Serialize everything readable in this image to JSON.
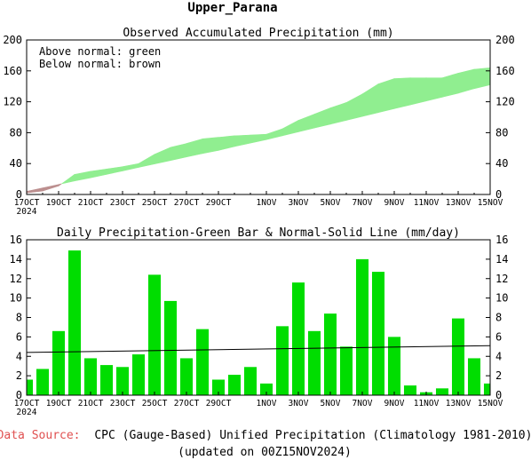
{
  "page_title": "Upper_Parana",
  "source": {
    "label": "Data Source:",
    "text": "CPC (Gauge-Based) Unified Precipitation (Climatology 1981-2010)",
    "updated": "(updated on 00Z15NOV2024)"
  },
  "colors": {
    "above_normal": "#90EE90",
    "below_normal": "#BC8F8F",
    "bar": "#00DD00",
    "normal_line": "#000000",
    "source_label": "#E05050"
  },
  "chart_data": [
    {
      "type": "area",
      "title": "Observed Accumulated Precipitation (mm)",
      "annotations": [
        "Above normal: green",
        "Below normal: brown"
      ],
      "ylim": [
        0,
        200
      ],
      "yticks": [
        0,
        40,
        80,
        120,
        160,
        200
      ],
      "xlim": [
        0,
        29
      ],
      "xtick_labels": [
        {
          "x": 0,
          "label": "17OCT",
          "sub": "2024"
        },
        {
          "x": 2,
          "label": "19OCT"
        },
        {
          "x": 4,
          "label": "21OCT"
        },
        {
          "x": 6,
          "label": "23OCT"
        },
        {
          "x": 8,
          "label": "25OCT"
        },
        {
          "x": 10,
          "label": "27OCT"
        },
        {
          "x": 12,
          "label": "29OCT"
        },
        {
          "x": 15,
          "label": "1NOV"
        },
        {
          "x": 17,
          "label": "3NOV"
        },
        {
          "x": 19,
          "label": "5NOV"
        },
        {
          "x": 21,
          "label": "7NOV"
        },
        {
          "x": 23,
          "label": "9NOV"
        },
        {
          "x": 25,
          "label": "11NOV"
        },
        {
          "x": 27,
          "label": "13NOV"
        },
        {
          "x": 29,
          "label": "15NOV"
        }
      ],
      "series": [
        {
          "key": "observed",
          "x": [
            0,
            1,
            2,
            3,
            4,
            5,
            6,
            7,
            8,
            9,
            10,
            11,
            12,
            13,
            14,
            15,
            16,
            17,
            18,
            19,
            20,
            21,
            22,
            23,
            24,
            25,
            26,
            27,
            28,
            29
          ],
          "values": [
            2,
            4.5,
            11,
            26,
            30,
            33,
            36,
            40,
            52,
            61,
            66,
            72,
            74,
            76,
            77,
            78,
            85,
            96,
            104,
            112,
            119,
            130,
            143,
            150,
            151,
            151,
            151,
            157,
            162,
            164
          ]
        },
        {
          "key": "normal",
          "x": [
            0,
            1,
            2,
            3,
            4,
            5,
            6,
            7,
            8,
            9,
            10,
            11,
            12,
            13,
            14,
            15,
            16,
            17,
            18,
            19,
            20,
            21,
            22,
            23,
            24,
            25,
            26,
            27,
            28,
            29
          ],
          "values": [
            4,
            8.5,
            13,
            17.5,
            21.5,
            26,
            30.5,
            35,
            39.5,
            44,
            48.5,
            53,
            57,
            62,
            66.5,
            71,
            76,
            81,
            86,
            91,
            96,
            101,
            106,
            111,
            116,
            121,
            126,
            131,
            137,
            142
          ]
        }
      ]
    },
    {
      "type": "bar",
      "title": "Daily Precipitation-Green Bar & Normal-Solid Line (mm/day)",
      "ylim": [
        0,
        16
      ],
      "yticks": [
        0,
        2,
        4,
        6,
        8,
        10,
        12,
        14,
        16
      ],
      "xlim": [
        0,
        29
      ],
      "xtick_labels": [
        {
          "x": 0,
          "label": "17OCT",
          "sub": "2024"
        },
        {
          "x": 2,
          "label": "19OCT"
        },
        {
          "x": 4,
          "label": "21OCT"
        },
        {
          "x": 6,
          "label": "23OCT"
        },
        {
          "x": 8,
          "label": "25OCT"
        },
        {
          "x": 10,
          "label": "27OCT"
        },
        {
          "x": 12,
          "label": "29OCT"
        },
        {
          "x": 15,
          "label": "1NOV"
        },
        {
          "x": 17,
          "label": "3NOV"
        },
        {
          "x": 19,
          "label": "5NOV"
        },
        {
          "x": 21,
          "label": "7NOV"
        },
        {
          "x": 23,
          "label": "9NOV"
        },
        {
          "x": 25,
          "label": "11NOV"
        },
        {
          "x": 27,
          "label": "13NOV"
        },
        {
          "x": 29,
          "label": "15NOV"
        }
      ],
      "x": [
        0,
        1,
        2,
        3,
        4,
        5,
        6,
        7,
        8,
        9,
        10,
        11,
        12,
        13,
        14,
        15,
        16,
        17,
        18,
        19,
        20,
        21,
        22,
        23,
        24,
        25,
        26,
        27,
        28,
        29
      ],
      "series": [
        {
          "key": "daily",
          "values": [
            1.6,
            2.7,
            6.6,
            14.9,
            3.8,
            3.1,
            2.9,
            4.2,
            12.4,
            9.7,
            3.8,
            6.8,
            1.6,
            2.1,
            2.9,
            1.2,
            7.1,
            11.6,
            6.6,
            8.4,
            5.0,
            14.0,
            12.7,
            6.0,
            1.0,
            0.3,
            0.7,
            7.9,
            3.8,
            1.2
          ]
        },
        {
          "key": "normal",
          "x": [
            0,
            29
          ],
          "values": [
            4.4,
            5.1
          ]
        }
      ]
    }
  ]
}
